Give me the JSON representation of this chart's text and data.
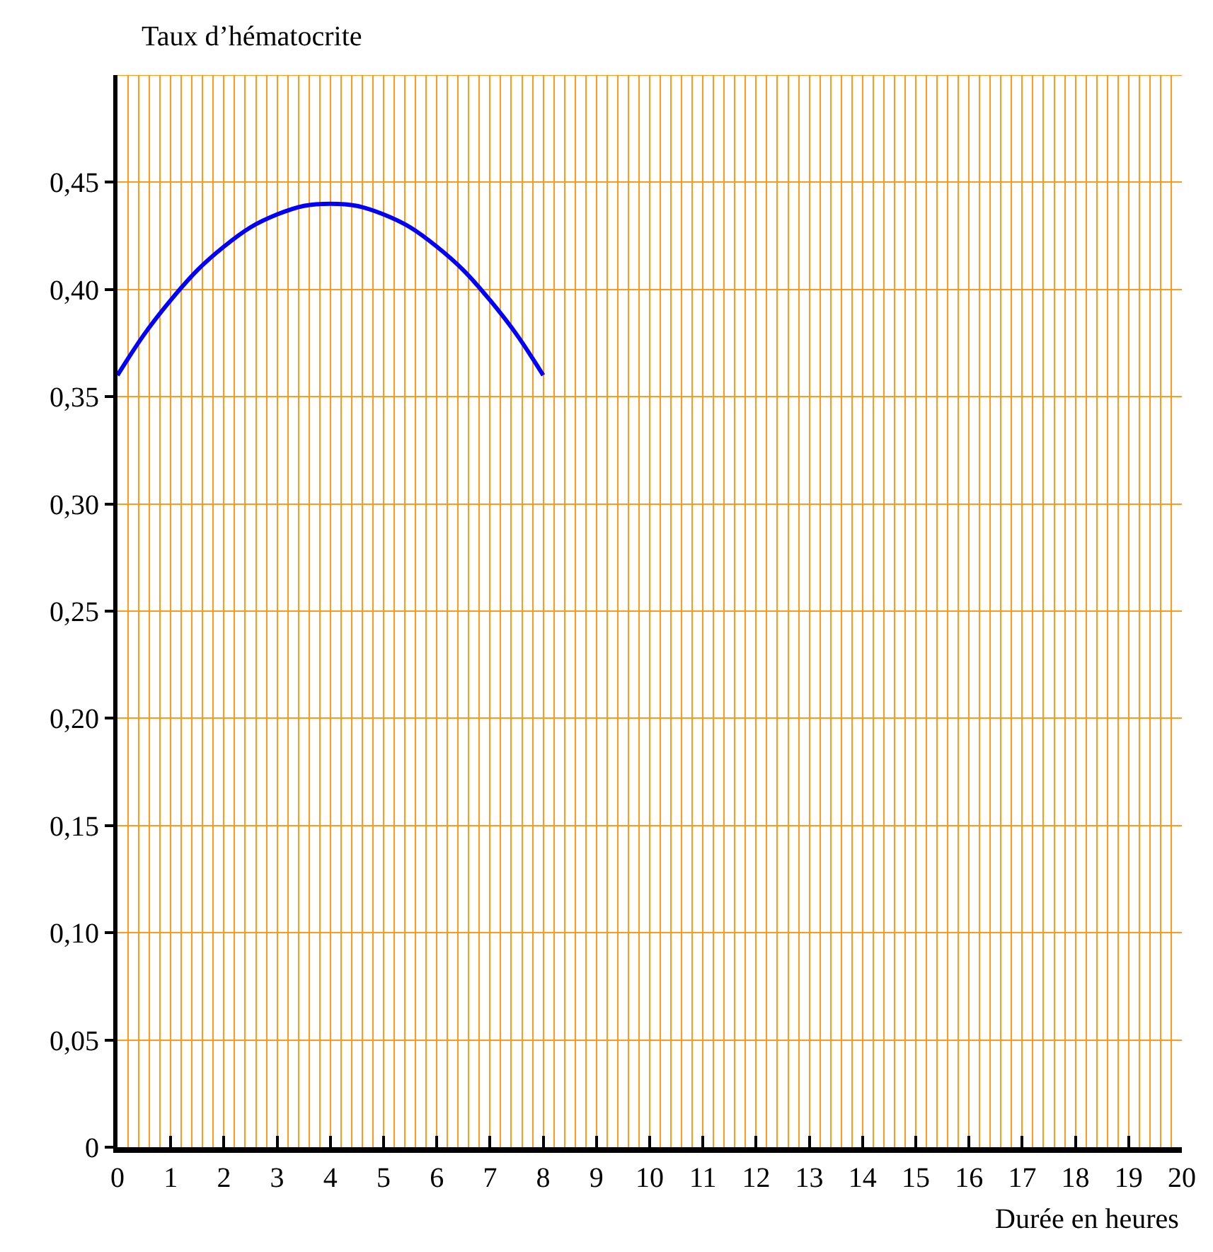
{
  "chart_data": {
    "type": "line",
    "xlabel": "Durée en heures",
    "ylabel": "Taux d’hématocrite",
    "xlim": [
      0,
      20
    ],
    "ylim": [
      0,
      0.5
    ],
    "xticks": [
      0,
      1,
      2,
      3,
      4,
      5,
      6,
      7,
      8,
      9,
      10,
      11,
      12,
      13,
      14,
      15,
      16,
      17,
      18,
      19,
      20
    ],
    "yticks": [
      0,
      {
        "value": 0.05,
        "label": "0,05"
      },
      {
        "value": 0.1,
        "label": "0,10"
      },
      {
        "value": 0.15,
        "label": "0,15"
      },
      {
        "value": 0.2,
        "label": "0,20"
      },
      {
        "value": 0.25,
        "label": "0,25"
      },
      {
        "value": 0.3,
        "label": "0,30"
      },
      {
        "value": 0.35,
        "label": "0,35"
      },
      {
        "value": 0.4,
        "label": "0,40"
      },
      {
        "value": 0.45,
        "label": "0,45"
      }
    ],
    "grid": true,
    "marker": "none",
    "line_style": "solid",
    "series": [
      {
        "color": "#0000ff",
        "x": [
          0,
          0.5,
          1,
          1.5,
          2,
          2.5,
          3,
          3.5,
          4,
          4.5,
          5,
          5.5,
          6,
          6.5,
          7,
          7.5,
          8
        ],
        "values": [
          0.36,
          0.379,
          0.395,
          0.409,
          0.42,
          0.429,
          0.435,
          0.439,
          0.44,
          0.439,
          0.435,
          0.429,
          0.42,
          0.409,
          0.395,
          0.379,
          0.36
        ]
      }
    ]
  }
}
